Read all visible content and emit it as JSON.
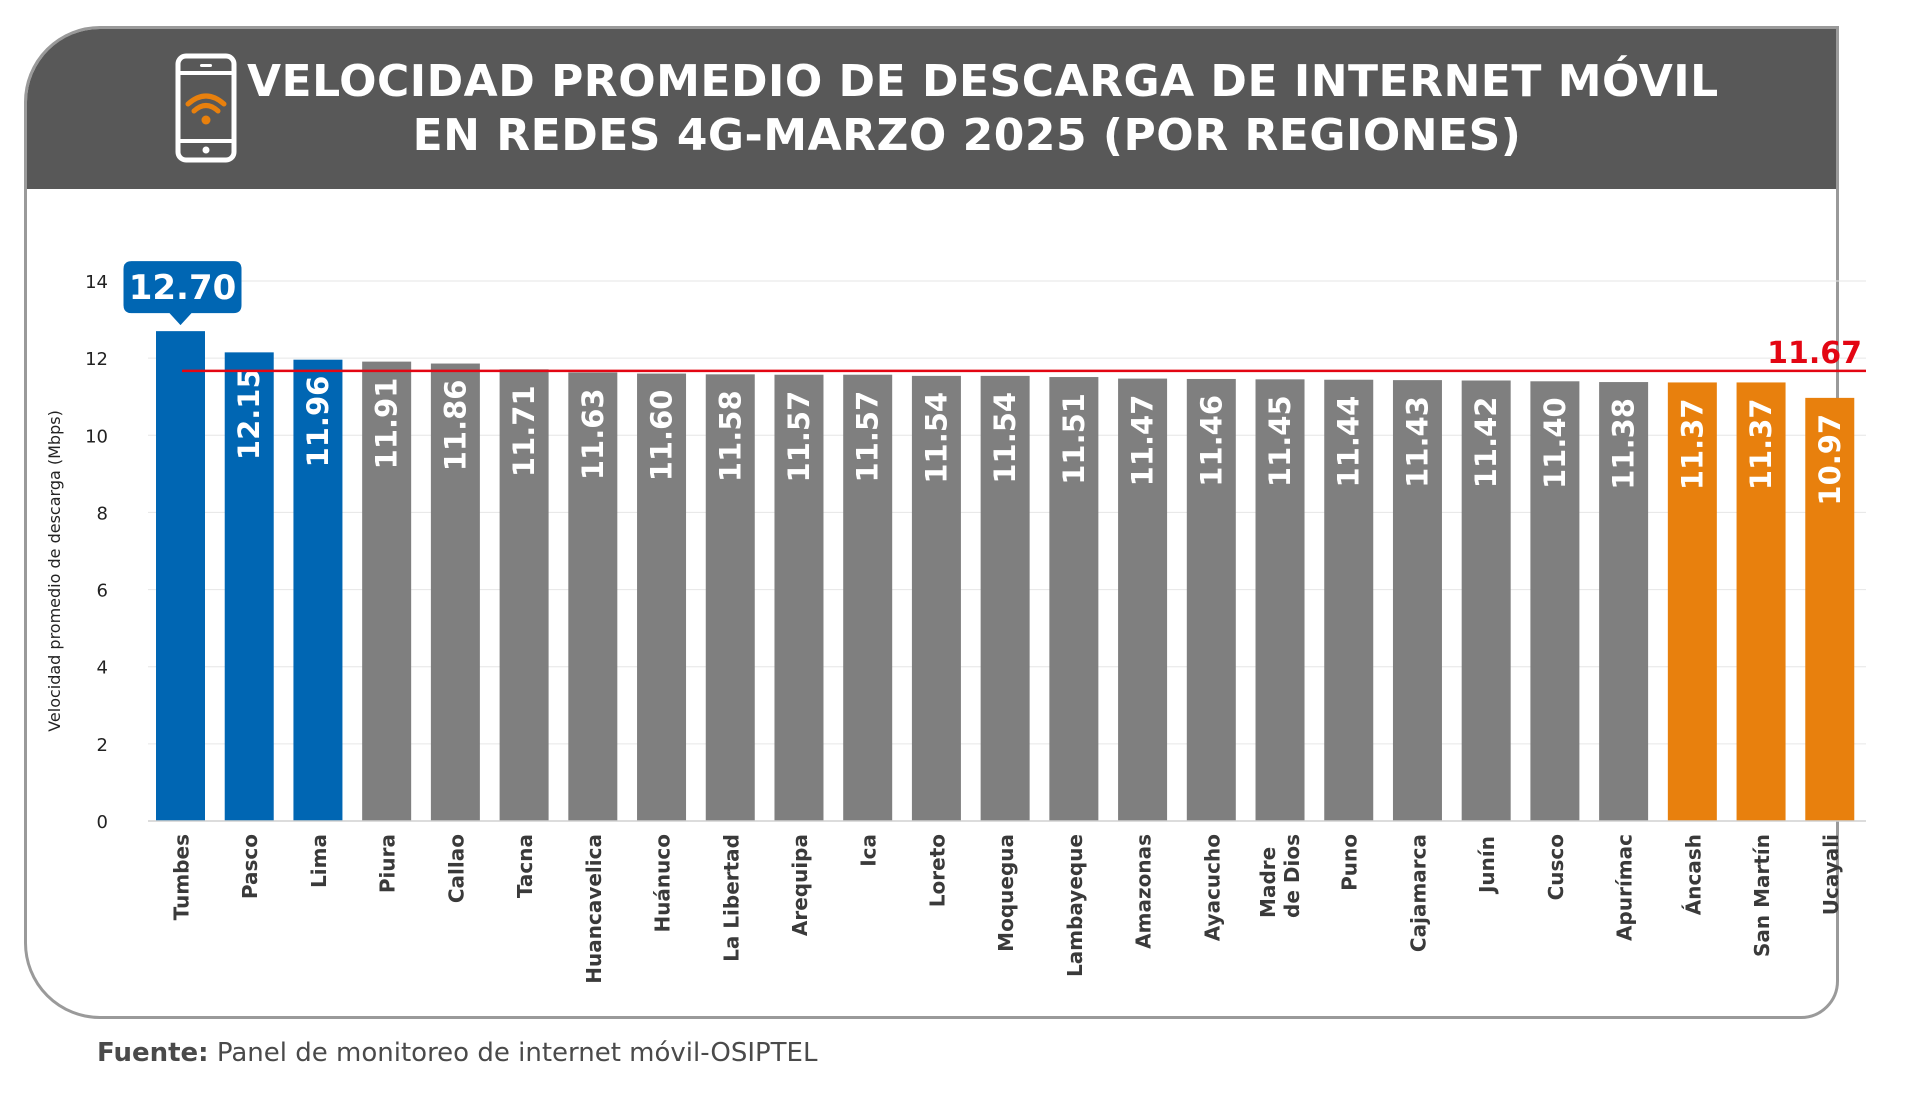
{
  "title": {
    "line1": "VELOCIDAD PROMEDIO DE DESCARGA DE INTERNET MÓVIL",
    "line2": "EN REDES 4G-MARZO 2025 (POR REGIONES)"
  },
  "icons": {
    "header": "phone-wifi-icon"
  },
  "colors": {
    "header_bg": "#585858",
    "top": "#0066b3",
    "middle": "#7f7f7f",
    "bottom": "#e8800d",
    "average_line": "#e30613",
    "callout": "#0066b3"
  },
  "source": {
    "label": "Fuente:",
    "text": "Panel de monitoreo de internet móvil-OSIPTEL"
  },
  "chart_data": {
    "type": "bar",
    "title": "VELOCIDAD PROMEDIO DE DESCARGA DE INTERNET MÓVIL EN REDES 4G-MARZO 2025 (POR REGIONES)",
    "ylabel": "Velocidad promedio de descarga (Mbps)",
    "xlabel": "",
    "ylim": [
      0,
      14
    ],
    "yticks": [
      "0",
      "2",
      "4",
      "6",
      "8",
      "10",
      "12",
      "14"
    ],
    "grid": true,
    "categories": [
      [
        "Tumbes"
      ],
      [
        "Pasco"
      ],
      [
        "Lima"
      ],
      [
        "Piura"
      ],
      [
        "Callao"
      ],
      [
        "Tacna"
      ],
      [
        "Huancavelica"
      ],
      [
        "Huánuco"
      ],
      [
        "La Libertad"
      ],
      [
        "Arequipa"
      ],
      [
        "Ica"
      ],
      [
        "Loreto"
      ],
      [
        "Moquegua"
      ],
      [
        "Lambayeque"
      ],
      [
        "Amazonas"
      ],
      [
        "Ayacucho"
      ],
      [
        "Madre",
        "de Dios"
      ],
      [
        "Puno"
      ],
      [
        "Cajamarca"
      ],
      [
        "Junín"
      ],
      [
        "Cusco"
      ],
      [
        "Apurímac"
      ],
      [
        "Áncash"
      ],
      [
        "San Martín"
      ],
      [
        "Ucayali"
      ]
    ],
    "values": [
      12.7,
      12.15,
      11.96,
      11.91,
      11.86,
      11.71,
      11.63,
      11.6,
      11.58,
      11.57,
      11.57,
      11.54,
      11.54,
      11.51,
      11.47,
      11.46,
      11.45,
      11.44,
      11.43,
      11.42,
      11.4,
      11.38,
      11.37,
      11.37,
      10.97
    ],
    "labels": [
      "12.70",
      "12.15",
      "11.96",
      "11.91",
      "11.86",
      "11.71",
      "11.63",
      "11.60",
      "11.58",
      "11.57",
      "11.57",
      "11.54",
      "11.54",
      "11.51",
      "11.47",
      "11.46",
      "11.45",
      "11.44",
      "11.43",
      "11.42",
      "11.40",
      "11.38",
      "11.37",
      "11.37",
      "10.97"
    ],
    "groups": [
      "top",
      "top",
      "top",
      "middle",
      "middle",
      "middle",
      "middle",
      "middle",
      "middle",
      "middle",
      "middle",
      "middle",
      "middle",
      "middle",
      "middle",
      "middle",
      "middle",
      "middle",
      "middle",
      "middle",
      "middle",
      "middle",
      "bottom",
      "bottom",
      "bottom"
    ],
    "average": {
      "value": 11.67,
      "label": "11.67"
    }
  }
}
